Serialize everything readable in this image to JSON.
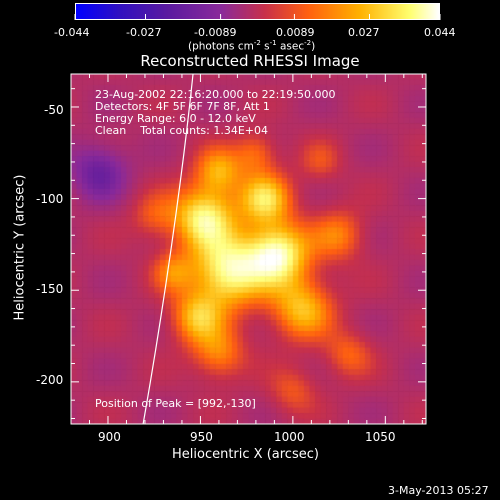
{
  "colorbar": {
    "ticks": [
      "-0.044",
      "-0.027",
      "-0.0089",
      "0.0089",
      "0.027",
      "0.044"
    ],
    "units": "(photons cm",
    "units_exp1": "-2",
    "units_mid": " s",
    "units_exp2": "-1",
    "units_mid2": " asec",
    "units_exp3": "-2",
    "units_end": ")"
  },
  "info": {
    "time": "23-Aug-2002 22:16:20.000 to 22:19:50.000",
    "detectors": "Detectors: 4F 5F 6F 7F 8F, Att 1",
    "energy": "Energy Range: 6.0 - 12.0 keV",
    "clean": "Clean    Total counts: 1.34E+04",
    "peak": "Position of Peak = [992,-130]"
  },
  "footer": {
    "date": "3-May-2013 05:27"
  },
  "chart_data": {
    "type": "heatmap",
    "title": "Reconstructed RHESSI Image",
    "xlabel": "Heliocentric X (arcsec)",
    "ylabel": "Heliocentric Y (arcsec)",
    "xlim": [
      880,
      1072
    ],
    "ylim": [
      -223,
      -32
    ],
    "x_ticks": [
      900,
      950,
      1000,
      1050
    ],
    "y_ticks": [
      -50,
      -100,
      -150,
      -200
    ],
    "color_range": [
      -0.044,
      0.044
    ],
    "colormap": [
      "#0000ff",
      "#5018a0",
      "#8a2a9a",
      "#c8304a",
      "#ff6010",
      "#ffb000",
      "#ffff80",
      "#ffffff"
    ],
    "peak": [
      992,
      -130
    ],
    "limb_curve": [
      [
        946,
        -32
      ],
      [
        940,
        -90
      ],
      [
        930,
        -160
      ],
      [
        919,
        -223
      ]
    ],
    "sources": [
      {
        "x": 952,
        "y": -110,
        "sigma": 12,
        "amp": 0.04
      },
      {
        "x": 965,
        "y": -140,
        "sigma": 14,
        "amp": 0.043
      },
      {
        "x": 992,
        "y": -130,
        "sigma": 12,
        "amp": 0.044
      },
      {
        "x": 985,
        "y": -100,
        "sigma": 10,
        "amp": 0.034
      },
      {
        "x": 960,
        "y": -85,
        "sigma": 9,
        "amp": 0.026
      },
      {
        "x": 1005,
        "y": -160,
        "sigma": 12,
        "amp": 0.03
      },
      {
        "x": 948,
        "y": -165,
        "sigma": 10,
        "amp": 0.028
      },
      {
        "x": 960,
        "y": -185,
        "sigma": 10,
        "amp": 0.022
      },
      {
        "x": 1025,
        "y": -120,
        "sigma": 10,
        "amp": 0.02
      },
      {
        "x": 935,
        "y": -140,
        "sigma": 8,
        "amp": 0.018
      },
      {
        "x": 925,
        "y": -110,
        "sigma": 9,
        "amp": 0.014
      },
      {
        "x": 1030,
        "y": -185,
        "sigma": 9,
        "amp": 0.016
      },
      {
        "x": 1000,
        "y": -205,
        "sigma": 9,
        "amp": 0.014
      },
      {
        "x": 980,
        "y": -75,
        "sigma": 8,
        "amp": 0.018
      },
      {
        "x": 1015,
        "y": -80,
        "sigma": 8,
        "amp": 0.012
      }
    ]
  }
}
